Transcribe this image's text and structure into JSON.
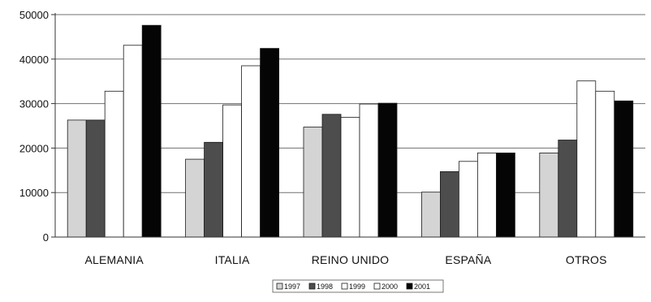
{
  "chart_data": {
    "type": "bar",
    "title": "",
    "xlabel": "",
    "ylabel": "",
    "ylim": [
      0,
      50000
    ],
    "yticks": [
      0,
      10000,
      20000,
      30000,
      40000,
      50000
    ],
    "grid": true,
    "legend_position": "bottom",
    "categories": [
      "ALEMANIA",
      "ITALIA",
      "REINO UNIDO",
      "ESPAÑA",
      "OTROS"
    ],
    "series": [
      {
        "name": "1997",
        "color": "#d4d4d4",
        "values": [
          26300,
          17500,
          24700,
          10100,
          18900
        ]
      },
      {
        "name": "1998",
        "color": "#4d4d4d",
        "values": [
          26300,
          21300,
          27600,
          14700,
          21800
        ]
      },
      {
        "name": "1999",
        "color": "#ffffff",
        "values": [
          32800,
          29700,
          26900,
          17000,
          35100
        ]
      },
      {
        "name": "2000",
        "color": "#ffffff",
        "values": [
          43100,
          38500,
          29900,
          18900,
          32800
        ]
      },
      {
        "name": "2001",
        "color": "#050505",
        "values": [
          47600,
          42400,
          30100,
          18900,
          30600
        ]
      }
    ]
  }
}
